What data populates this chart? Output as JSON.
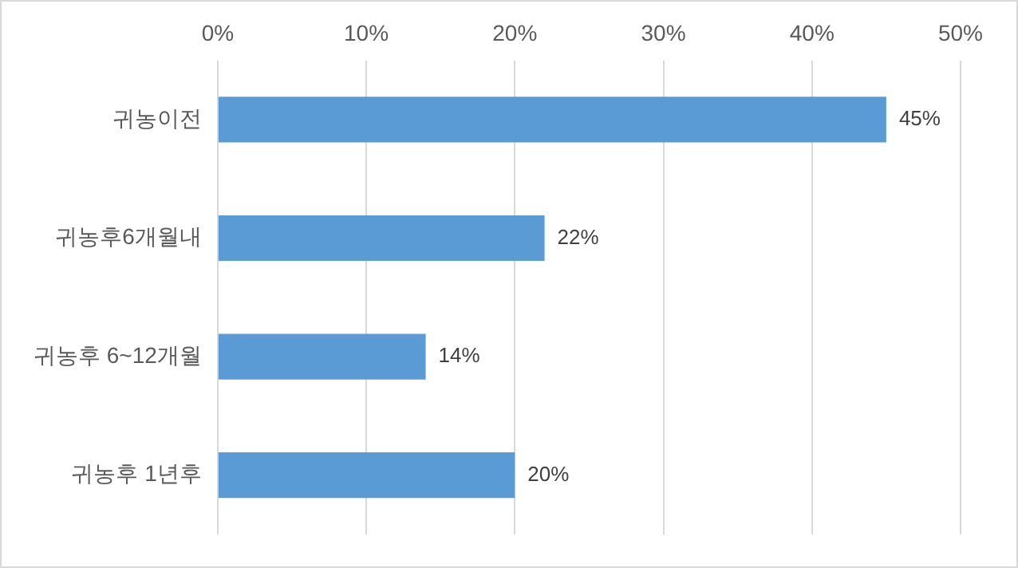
{
  "chart_data": {
    "type": "bar",
    "orientation": "horizontal",
    "categories": [
      "귀농이전",
      "귀농후6개월내",
      "귀농후 6~12개월",
      "귀농후 1년후"
    ],
    "values": [
      45,
      22,
      14,
      20
    ],
    "color": "#5b9bd5",
    "value_labels": [
      "45%",
      "22%",
      "14%",
      "20%"
    ],
    "xlim": [
      0,
      50
    ],
    "xticks": [
      {
        "value": 0,
        "label": "0%"
      },
      {
        "value": 10,
        "label": "10%"
      },
      {
        "value": 20,
        "label": "20%"
      },
      {
        "value": 30,
        "label": "30%"
      },
      {
        "value": 40,
        "label": "40%"
      },
      {
        "value": 50,
        "label": "50%"
      }
    ],
    "grid": "x",
    "legend": false
  }
}
